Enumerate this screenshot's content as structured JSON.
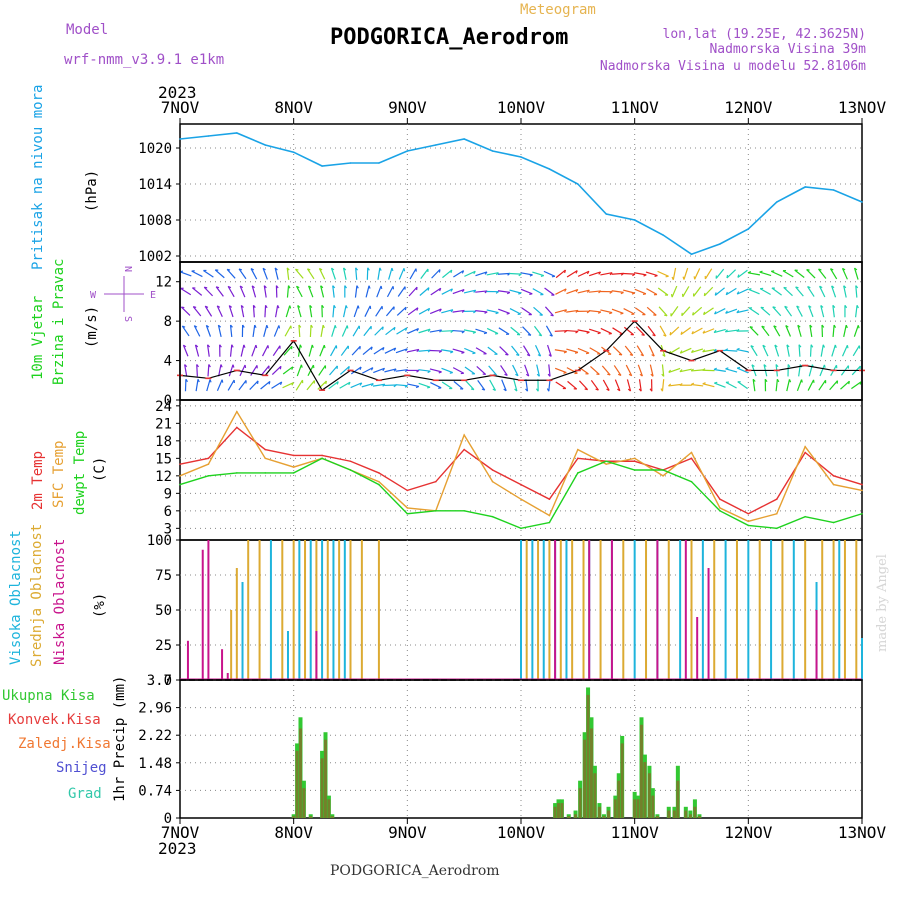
{
  "header": {
    "model_label": "Model",
    "model_name": "wrf-nmm_v3.9.1  e1km",
    "meteogram_label": "Meteogram",
    "station_title": "PODGORICA_Aerodrom",
    "lonlat": "lon,lat (19.25E, 42.3625N)",
    "altitude": "Nadmorska Visina 39m",
    "model_altitude": "Nadmorska Visina u modelu 52.8106m",
    "footer_station": "PODGORICA_Aerodrom",
    "watermark": "made by Angel"
  },
  "time_axis": {
    "year_label": "2023",
    "ticks": [
      "7NOV",
      "8NOV",
      "9NOV",
      "10NOV",
      "11NOV",
      "12NOV",
      "13NOV"
    ]
  },
  "colors": {
    "pressure": "#1aa3e6",
    "temp2m": "#e63232",
    "sfc_temp": "#e6a032",
    "dewpoint": "#1ed21e",
    "high_cloud": "#1eb4dc",
    "mid_cloud": "#dcaa32",
    "low_cloud": "#c8148c",
    "total_precip": "#32c832",
    "conv_precip": "#e63c3c",
    "frozen_precip": "#f07832",
    "snow": "#5050d2",
    "hail": "#32c8aa",
    "model_text": "#a050c8",
    "meteogram_text": "#e6b450"
  },
  "chart_data": [
    {
      "type": "line",
      "name": "pressure-panel",
      "ylabel_main": "Pritisak na nivou mora",
      "ylabel_unit": "(hPa)",
      "yticks": [
        "1020",
        "1014",
        "1008",
        "1002"
      ],
      "ylim": [
        1001,
        1024
      ],
      "x_days": [
        0,
        0.25,
        0.5,
        0.75,
        1.0,
        1.25,
        1.5,
        1.75,
        2.0,
        2.25,
        2.5,
        2.75,
        3.0,
        3.25,
        3.5,
        3.75,
        4.0,
        4.25,
        4.5,
        4.75,
        5.0,
        5.25,
        5.5,
        5.75,
        6.0
      ],
      "series": [
        {
          "values": [
            1021.5,
            1022,
            1022.5,
            1020.5,
            1019.3,
            1017,
            1017.5,
            1017.5,
            1019.5,
            1020.5,
            1021.5,
            1019.5,
            1018.5,
            1016.5,
            1014,
            1009,
            1008,
            1005.5,
            1002.3,
            1004,
            1006.5,
            1011,
            1013.5,
            1013,
            1011
          ]
        }
      ]
    },
    {
      "type": "scatter",
      "name": "wind-panel",
      "ylabel_line1": "10m Vjetar",
      "ylabel_line2": "Brzina i Pravac",
      "ylabel_unit": "(m/s)",
      "compass": {
        "n": "N",
        "w": "W",
        "e": "E",
        "s": "S"
      },
      "yticks": [
        "12",
        "8",
        "4",
        "0"
      ],
      "ylim": [
        0,
        14
      ],
      "x_days": [
        0,
        0.25,
        0.5,
        0.75,
        1.0,
        1.25,
        1.5,
        1.75,
        2.0,
        2.25,
        2.5,
        2.75,
        3.0,
        3.25,
        3.5,
        3.75,
        4.0,
        4.25,
        4.5,
        4.75,
        5.0,
        5.25,
        5.5,
        5.75,
        6.0
      ],
      "series": [
        {
          "values": [
            2.5,
            2.2,
            3,
            2.5,
            6,
            1,
            3,
            2,
            2.5,
            2,
            2,
            2.5,
            2,
            2,
            3,
            5,
            8,
            5,
            4,
            5,
            3,
            3,
            3.5,
            3,
            3
          ]
        }
      ]
    },
    {
      "type": "line",
      "name": "temperature-panel",
      "ylabel_t2": "2m Temp",
      "ylabel_sfc": "SFC Temp",
      "ylabel_dew": "dewpt Temp",
      "ylabel_unit": "(C)",
      "yticks": [
        "24",
        "21",
        "18",
        "15",
        "12",
        "9",
        "6",
        "3"
      ],
      "ylim": [
        1,
        25
      ],
      "x_days": [
        0,
        0.25,
        0.5,
        0.75,
        1.0,
        1.25,
        1.5,
        1.75,
        2.0,
        2.25,
        2.5,
        2.75,
        3.0,
        3.25,
        3.5,
        3.75,
        4.0,
        4.25,
        4.5,
        4.75,
        5.0,
        5.25,
        5.5,
        5.75,
        6.0
      ],
      "series": [
        {
          "key": "temp2m",
          "values": [
            14,
            15,
            20.3,
            16.5,
            15.5,
            15.5,
            14.5,
            12.5,
            9.5,
            11,
            16.5,
            13,
            10.5,
            8,
            15,
            14.5,
            14.5,
            13,
            15,
            8,
            5.5,
            8,
            16,
            12,
            10.5
          ]
        },
        {
          "key": "sfc_temp",
          "values": [
            12,
            14,
            23,
            15,
            13.5,
            15,
            13,
            11,
            6.5,
            6,
            19,
            11,
            8,
            5.2,
            16.5,
            14,
            15,
            12,
            16,
            6.5,
            4.2,
            5.5,
            17,
            10.5,
            9.5
          ]
        },
        {
          "key": "dewpoint",
          "values": [
            10.5,
            12,
            12.5,
            12.5,
            12.5,
            15,
            13,
            10.5,
            5.5,
            6,
            6,
            5,
            3,
            4,
            12.5,
            14.5,
            13,
            13,
            11,
            6,
            3.5,
            3,
            5,
            4,
            5.5
          ]
        }
      ]
    },
    {
      "type": "bar",
      "name": "cloud-panel",
      "ylabel_high": "Visoka Oblacnost",
      "ylabel_mid": "Srednja Oblacnost",
      "ylabel_low": "Niska Oblacnost",
      "ylabel_unit": "(%)",
      "yticks": [
        "100",
        "75",
        "50",
        "25",
        "0"
      ],
      "ylim": [
        0,
        100
      ],
      "series": [
        {
          "key": "high",
          "x_days": [
            0.55,
            0.8,
            0.95,
            1.05,
            1.15,
            1.25,
            1.35,
            1.45,
            3.0,
            3.1,
            3.2,
            3.3,
            3.4,
            3.6,
            3.8,
            4.0,
            4.2,
            4.4,
            4.6,
            4.8,
            5.0,
            5.2,
            5.4,
            5.6,
            5.8,
            6.0
          ],
          "values": [
            70,
            100,
            35,
            100,
            100,
            100,
            100,
            100,
            100,
            100,
            100,
            100,
            100,
            100,
            100,
            100,
            100,
            100,
            100,
            100,
            100,
            100,
            100,
            70,
            100,
            30
          ]
        },
        {
          "key": "mid",
          "x_days": [
            0.45,
            0.5,
            0.6,
            0.7,
            0.9,
            1.0,
            1.1,
            1.2,
            1.3,
            1.4,
            1.5,
            1.6,
            1.75,
            3.05,
            3.15,
            3.25,
            3.35,
            3.45,
            3.55,
            3.7,
            3.9,
            4.1,
            4.3,
            4.5,
            4.7,
            4.9,
            5.1,
            5.3,
            5.5,
            5.65,
            5.75,
            5.85,
            5.95
          ],
          "values": [
            50,
            80,
            100,
            100,
            100,
            100,
            100,
            100,
            100,
            100,
            100,
            100,
            100,
            100,
            100,
            100,
            100,
            100,
            100,
            100,
            100,
            100,
            100,
            100,
            100,
            100,
            100,
            100,
            100,
            100,
            100,
            100,
            100
          ]
        },
        {
          "key": "low",
          "x_days": [
            0.07,
            0.2,
            0.25,
            0.37,
            0.42,
            1.2,
            3.3,
            3.6,
            3.8,
            4.2,
            4.45,
            4.55,
            4.65,
            5.6
          ],
          "values": [
            28,
            93,
            100,
            22,
            5,
            35,
            100,
            100,
            100,
            100,
            100,
            45,
            80,
            50
          ]
        }
      ]
    },
    {
      "type": "bar",
      "name": "precip-panel",
      "ylabel_total": "Ukupna Kisa",
      "ylabel_conv": "Konvek.Kisa",
      "ylabel_frozen": "Zaledj.Kisa",
      "ylabel_snow": "Snijeg",
      "ylabel_hail": "Grad",
      "ylabel_unit": "1hr Precip (mm)",
      "yticks": [
        "3.7",
        "2.96",
        "2.22",
        "1.48",
        "0.74",
        "0"
      ],
      "ylim": [
        0,
        3.7
      ],
      "x_days": [
        1.0,
        1.03,
        1.06,
        1.09,
        1.15,
        1.25,
        1.28,
        1.31,
        1.34,
        3.3,
        3.33,
        3.36,
        3.42,
        3.48,
        3.52,
        3.56,
        3.59,
        3.62,
        3.65,
        3.69,
        3.73,
        3.77,
        3.83,
        3.86,
        3.89,
        4.0,
        4.03,
        4.06,
        4.09,
        4.13,
        4.16,
        4.2,
        4.3,
        4.35,
        4.38,
        4.45,
        4.49,
        4.53,
        4.57
      ],
      "series": [
        {
          "key": "total",
          "values": [
            0.1,
            2.0,
            2.7,
            1.0,
            0.1,
            1.8,
            2.3,
            0.6,
            0.1,
            0.4,
            0.5,
            0.5,
            0.1,
            0.2,
            1.0,
            2.3,
            3.5,
            2.7,
            1.4,
            0.4,
            0.1,
            0.3,
            0.6,
            1.2,
            2.2,
            0.7,
            0.6,
            2.7,
            1.7,
            1.4,
            0.8,
            0.1,
            0.3,
            0.3,
            1.4,
            0.3,
            0.2,
            0.5,
            0.1
          ]
        },
        {
          "key": "conv",
          "values": [
            0.05,
            1.8,
            2.4,
            0.8,
            0.05,
            1.6,
            2.1,
            0.5,
            0.05,
            0.3,
            0.4,
            0.4,
            0.05,
            0.1,
            0.8,
            2.1,
            3.3,
            2.4,
            1.2,
            0.3,
            0.05,
            0.2,
            0.5,
            1.0,
            2.0,
            0.5,
            0.5,
            2.5,
            1.5,
            1.2,
            0.6,
            0.05,
            0.2,
            0.2,
            1.0,
            0.2,
            0.1,
            0.3,
            0.05
          ]
        }
      ]
    }
  ]
}
